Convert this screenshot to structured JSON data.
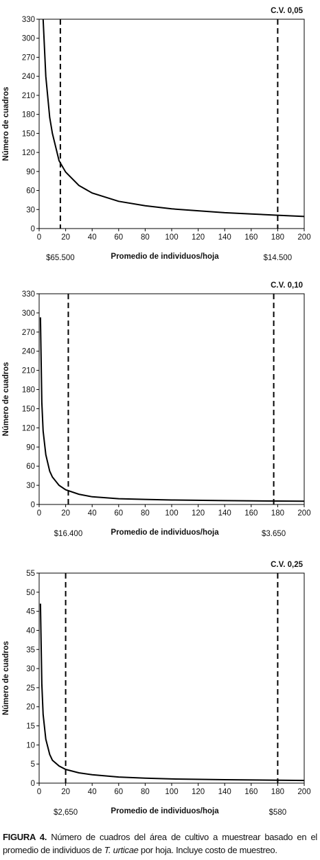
{
  "chart_data": [
    {
      "type": "line",
      "title": "C.V. 0,05",
      "x_label": "Promedio de individuos/hoja",
      "y_label": "Número de cuadros",
      "x": [
        3,
        5,
        8,
        10,
        15,
        20,
        30,
        40,
        60,
        80,
        100,
        120,
        140,
        160,
        180,
        200
      ],
      "values": [
        330,
        240,
        175,
        150,
        107,
        89,
        68,
        56,
        43,
        36,
        31,
        28,
        25,
        23,
        21,
        19
      ],
      "color": "#000000",
      "xlim": [
        0,
        200
      ],
      "xticks": [
        0,
        20,
        40,
        60,
        80,
        100,
        120,
        140,
        160,
        180,
        200
      ],
      "ylim": [
        0,
        330
      ],
      "yticks": [
        0,
        30,
        60,
        90,
        120,
        150,
        180,
        210,
        240,
        270,
        300,
        330
      ],
      "reference_lines": [
        {
          "x": 16,
          "label": "$65.500"
        },
        {
          "x": 180,
          "label": "$14.500"
        }
      ]
    },
    {
      "type": "line",
      "title": "C.V. 0,10",
      "x_label": "Promedio de individuos/hoja",
      "y_label": "Número de cuadros",
      "x": [
        1,
        2,
        3,
        5,
        8,
        10,
        15,
        20,
        30,
        40,
        60,
        80,
        100,
        140,
        200
      ],
      "values": [
        293,
        160,
        115,
        78,
        52,
        43,
        30,
        23,
        16,
        12,
        9,
        8,
        7,
        6,
        5
      ],
      "color": "#000000",
      "xlim": [
        0,
        200
      ],
      "xticks": [
        0,
        20,
        40,
        60,
        80,
        100,
        120,
        140,
        160,
        180,
        200
      ],
      "ylim": [
        0,
        330
      ],
      "yticks": [
        0,
        30,
        60,
        90,
        120,
        150,
        180,
        210,
        240,
        270,
        300,
        330
      ],
      "reference_lines": [
        {
          "x": 22,
          "label": "$16.400"
        },
        {
          "x": 177,
          "label": "$3.650"
        }
      ]
    },
    {
      "type": "line",
      "title": "C.V. 0,25",
      "x_label": "Promedio de individuos/hoja",
      "y_label": "Número de cuadros",
      "x": [
        1,
        2,
        3,
        5,
        8,
        10,
        15,
        20,
        30,
        40,
        60,
        80,
        100,
        140,
        200
      ],
      "values": [
        47,
        26,
        18,
        11.5,
        7.5,
        6,
        4.5,
        3.6,
        2.7,
        2.2,
        1.6,
        1.3,
        1.1,
        0.9,
        0.7
      ],
      "color": "#000000",
      "xlim": [
        0,
        200
      ],
      "xticks": [
        0,
        20,
        40,
        60,
        80,
        100,
        120,
        140,
        160,
        180,
        200
      ],
      "ylim": [
        0,
        55
      ],
      "yticks": [
        0,
        5,
        10,
        15,
        20,
        25,
        30,
        35,
        40,
        45,
        50,
        55
      ],
      "reference_lines": [
        {
          "x": 20,
          "label": "$2,650"
        },
        {
          "x": 180,
          "label": "$580"
        }
      ]
    }
  ],
  "caption": {
    "label": "FIGURA 4.",
    "text_1": "Número de cuadros del área de cultivo a muestrear basado en el",
    "text_2": "promedio de individuos de",
    "species": "T. urticae",
    "text_3": "por hoja. Incluye costo de muestreo."
  }
}
